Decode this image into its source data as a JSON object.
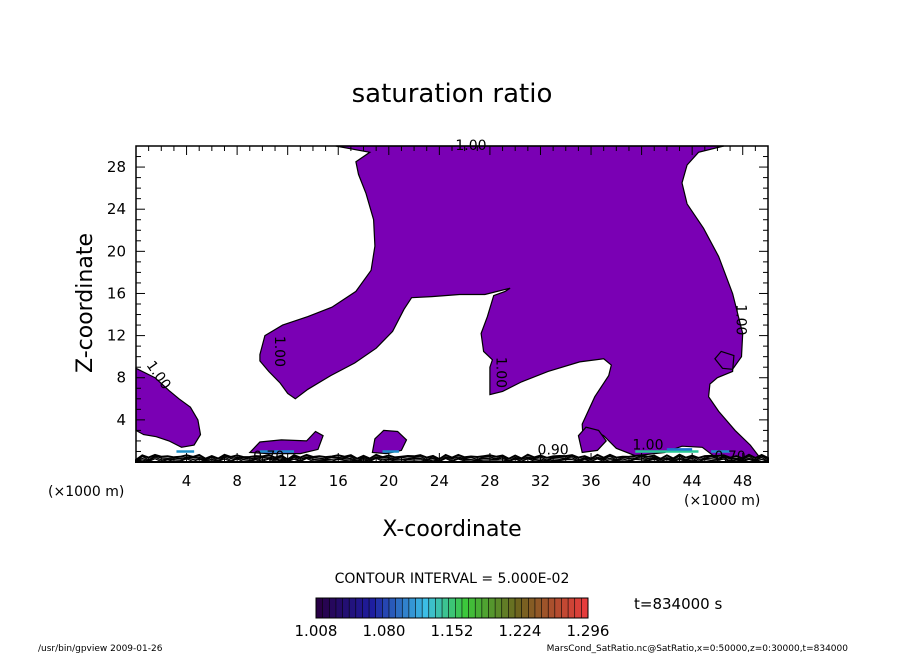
{
  "chart_data": {
    "type": "contour",
    "title": "saturation ratio",
    "xlabel": "X-coordinate",
    "ylabel": "Z-coordinate",
    "x_unit_label": "(×1000 m)",
    "y_unit_label": "(×1000 m)",
    "xlim": [
      0,
      50
    ],
    "ylim": [
      0,
      30
    ],
    "x_ticks": [
      "4",
      "8",
      "12",
      "16",
      "20",
      "24",
      "28",
      "32",
      "36",
      "40",
      "44",
      "48"
    ],
    "y_ticks": [
      "4",
      "8",
      "12",
      "16",
      "20",
      "24",
      "28"
    ],
    "contour_interval_text": "CONTOUR INTERVAL = 5.000E-02",
    "colorbar_labels": [
      "1.008",
      "1.080",
      "1.152",
      "1.224",
      "1.296"
    ],
    "colorbar_range": [
      1.008,
      1.296
    ],
    "time_text": "t=834000 s",
    "fill_color": "#7a00b4",
    "contour_labels": [
      {
        "text": "1.00",
        "x": 26.5,
        "y": 29.6
      },
      {
        "text": "1.00",
        "x": 47.5,
        "y": 13.5
      },
      {
        "text": "1.00",
        "x": 11.0,
        "y": 10.5
      },
      {
        "text": "1.00",
        "x": 28.5,
        "y": 8.5
      },
      {
        "text": "1.00",
        "x": 1.5,
        "y": 8.0
      },
      {
        "text": "0.90",
        "x": 33.0,
        "y": 0.7
      },
      {
        "text": "0.70",
        "x": 10.5,
        "y": 0.1
      },
      {
        "text": "0.70",
        "x": 47.0,
        "y": 0.1
      },
      {
        "text": "1.00",
        "x": 40.5,
        "y": 1.2
      }
    ],
    "footer_left": "/usr/bin/gpview   2009-01-26",
    "footer_right": "MarsCond_SatRatio.nc@SatRatio,x=0:50000,z=0:30000,t=834000"
  }
}
